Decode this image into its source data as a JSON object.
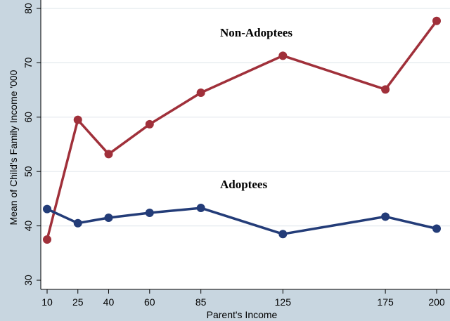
{
  "chart_data": {
    "type": "line",
    "xlabel": "Parent's Income",
    "ylabel": "Mean of Child's Family Income '000",
    "x": [
      10,
      25,
      40,
      60,
      85,
      125,
      175,
      200
    ],
    "xticks": [
      "10",
      "25",
      "40",
      "60",
      "85",
      "125",
      "175",
      "200"
    ],
    "yticks": [
      "30",
      "40",
      "50",
      "60",
      "70",
      "80"
    ],
    "xlim": [
      10,
      200
    ],
    "ylim": [
      30,
      80
    ],
    "grid": "horizontal",
    "series": [
      {
        "name": "Non-Adoptees",
        "color": "#a0303a",
        "values": [
          37.5,
          59.5,
          53.2,
          58.7,
          64.5,
          71.3,
          65.1,
          77.7
        ]
      },
      {
        "name": "Adoptees",
        "color": "#233c78",
        "values": [
          43.1,
          40.5,
          41.5,
          42.4,
          43.3,
          38.5,
          41.7,
          39.5
        ]
      }
    ]
  }
}
